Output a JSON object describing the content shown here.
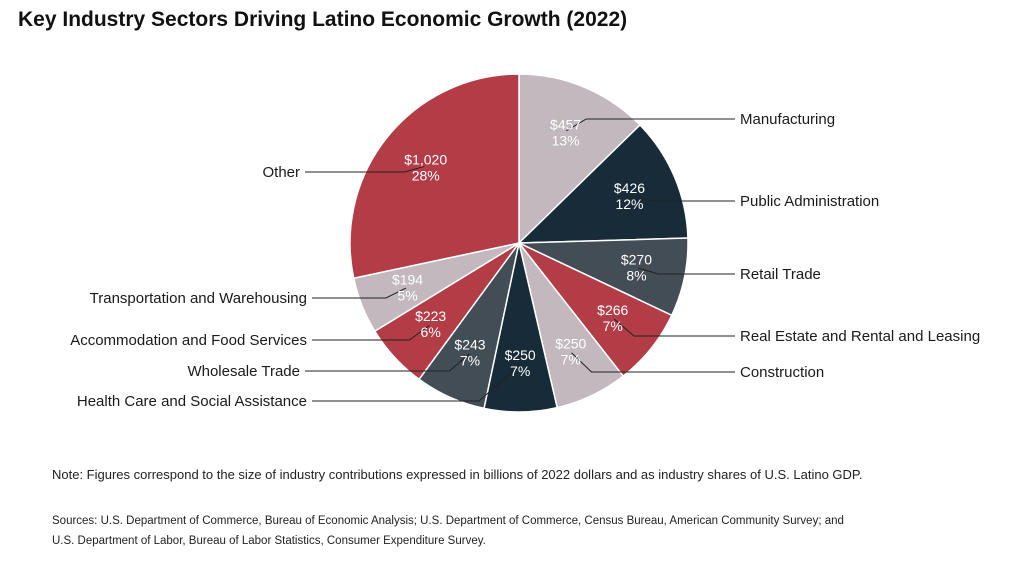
{
  "title": "Key Industry Sectors Driving Latino Economic Growth (2022)",
  "note": "Note: Figures correspond to the size of industry contributions expressed in billions of 2022 dollars and as industry shares of U.S. Latino GDP.",
  "sources": [
    "Sources: U.S. Department of Commerce, Bureau of Economic Analysis; U.S. Department of Commerce, Census Bureau, American Community Survey; and",
    "U.S. Department of Labor, Bureau of Labor Statistics, Consumer Expenditure Survey."
  ],
  "chart_data": {
    "type": "pie",
    "slices": [
      {
        "category": "Manufacturing",
        "value": 457,
        "value_label": "$457",
        "percent_label": "13%",
        "color": "#c2b8bd",
        "text_color": "#ffffff"
      },
      {
        "category": "Public Administration",
        "value": 426,
        "value_label": "$426",
        "percent_label": "12%",
        "color": "#172b38",
        "text_color": "#ffffff"
      },
      {
        "category": "Retail Trade",
        "value": 270,
        "value_label": "$270",
        "percent_label": "8%",
        "color": "#434d55",
        "text_color": "#ffffff"
      },
      {
        "category": "Real Estate and Rental and Leasing",
        "value": 266,
        "value_label": "$266",
        "percent_label": "7%",
        "color": "#b33d47",
        "text_color": "#ffffff"
      },
      {
        "category": "Construction",
        "value": 250,
        "value_label": "$250",
        "percent_label": "7%",
        "color": "#c2b8bd",
        "text_color": "#ffffff"
      },
      {
        "category": "Health Care and Social Assistance",
        "value": 250,
        "value_label": "$250",
        "percent_label": "7%",
        "color": "#172b38",
        "text_color": "#ffffff"
      },
      {
        "category": "Wholesale Trade",
        "value": 243,
        "value_label": "$243",
        "percent_label": "7%",
        "color": "#434d55",
        "text_color": "#ffffff"
      },
      {
        "category": "Accommodation and Food Services",
        "value": 223,
        "value_label": "$223",
        "percent_label": "6%",
        "color": "#b33d47",
        "text_color": "#ffffff"
      },
      {
        "category": "Transportation and Warehousing",
        "value": 194,
        "value_label": "$194",
        "percent_label": "5%",
        "color": "#c2b8bd",
        "text_color": "#ffffff"
      },
      {
        "category": "Other",
        "value": 1020,
        "value_label": "$1,020",
        "percent_label": "28%",
        "color": "#b33d47",
        "text_color": "#ffffff"
      }
    ]
  }
}
